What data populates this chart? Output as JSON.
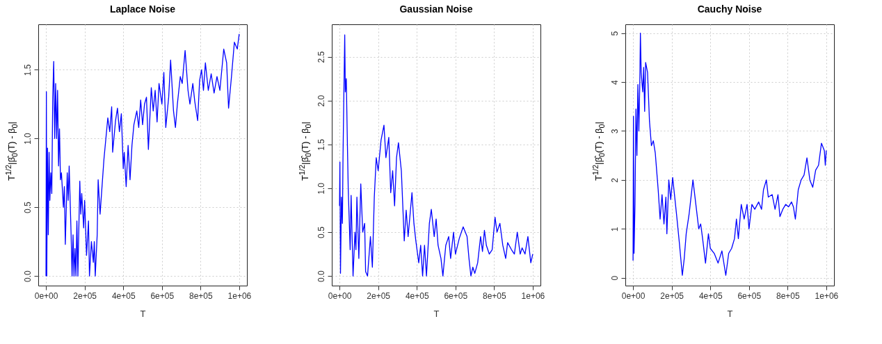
{
  "chart_data": [
    {
      "type": "line",
      "title": "Laplace Noise",
      "xlabel": "T",
      "ylabel": "T$^{1/2}$|β̂$_{0}$(T) - β$_{0}$|",
      "grid": true,
      "xlim": [
        -40000,
        1040000
      ],
      "ylim": [
        -0.07,
        1.83
      ],
      "xticks": [
        {
          "value": 0,
          "label": "0e+00"
        },
        {
          "value": 200000,
          "label": "2e+05"
        },
        {
          "value": 400000,
          "label": "4e+05"
        },
        {
          "value": 600000,
          "label": "6e+05"
        },
        {
          "value": 800000,
          "label": "8e+05"
        },
        {
          "value": 1000000,
          "label": "1e+06"
        }
      ],
      "yticks": [
        {
          "value": 0,
          "label": "0.0"
        },
        0.5,
        {
          "value": 1,
          "label": "1.0"
        },
        1.5
      ],
      "x": [
        0,
        2000,
        4000,
        8000,
        12000,
        16000,
        20000,
        25000,
        30000,
        35000,
        40000,
        45000,
        50000,
        55000,
        60000,
        65000,
        70000,
        75000,
        80000,
        90000,
        95000,
        100000,
        110000,
        115000,
        120000,
        130000,
        135000,
        140000,
        145000,
        150000,
        155000,
        160000,
        165000,
        175000,
        180000,
        185000,
        195000,
        200000,
        210000,
        220000,
        225000,
        235000,
        245000,
        250000,
        255000,
        265000,
        270000,
        280000,
        300000,
        320000,
        330000,
        340000,
        345000,
        360000,
        370000,
        380000,
        390000,
        400000,
        405000,
        415000,
        425000,
        435000,
        445000,
        455000,
        470000,
        480000,
        490000,
        500000,
        510000,
        520000,
        530000,
        545000,
        555000,
        565000,
        575000,
        585000,
        600000,
        610000,
        620000,
        635000,
        645000,
        660000,
        670000,
        680000,
        695000,
        705000,
        720000,
        735000,
        745000,
        760000,
        770000,
        785000,
        795000,
        805000,
        815000,
        825000,
        840000,
        855000,
        870000,
        885000,
        900000,
        910000,
        920000,
        935000,
        945000,
        960000,
        975000,
        990000,
        1000000
      ],
      "series": [
        {
          "color": "#0000ff",
          "values": [
            0.0,
            1.34,
            0.0,
            0.93,
            0.3,
            0.9,
            0.55,
            0.75,
            0.6,
            1.3,
            1.56,
            1.0,
            1.4,
            1.0,
            1.35,
            0.8,
            1.07,
            0.7,
            0.75,
            0.5,
            0.65,
            0.23,
            0.75,
            0.55,
            0.8,
            0.3,
            0.0,
            0.3,
            0.0,
            0.2,
            0.0,
            0.4,
            0.0,
            0.69,
            0.45,
            0.6,
            0.35,
            0.55,
            0.15,
            0.4,
            0.0,
            0.25,
            0.1,
            0.25,
            0.0,
            0.3,
            0.7,
            0.45,
            0.85,
            1.15,
            1.05,
            1.23,
            0.9,
            1.13,
            1.22,
            1.05,
            1.18,
            0.78,
            0.9,
            0.65,
            0.95,
            0.7,
            0.95,
            1.1,
            1.2,
            1.08,
            1.28,
            1.1,
            1.25,
            1.3,
            0.92,
            1.37,
            1.2,
            1.35,
            1.12,
            1.4,
            1.25,
            1.48,
            1.08,
            1.3,
            1.57,
            1.2,
            1.08,
            1.25,
            1.45,
            1.4,
            1.64,
            1.35,
            1.25,
            1.4,
            1.27,
            1.13,
            1.42,
            1.5,
            1.35,
            1.55,
            1.35,
            1.47,
            1.33,
            1.45,
            1.35,
            1.5,
            1.65,
            1.55,
            1.22,
            1.45,
            1.7,
            1.65,
            1.76
          ]
        }
      ]
    },
    {
      "type": "line",
      "title": "Gaussian Noise",
      "xlabel": "T",
      "ylabel": "T$^{1/2}$|β̂$_{0}$(T) - β$_{0}$|",
      "grid": true,
      "xlim": [
        -40000,
        1040000
      ],
      "ylim": [
        -0.11,
        2.87
      ],
      "xticks": [
        {
          "value": 0,
          "label": "0e+00"
        },
        {
          "value": 200000,
          "label": "2e+05"
        },
        {
          "value": 400000,
          "label": "4e+05"
        },
        {
          "value": 600000,
          "label": "6e+05"
        },
        {
          "value": 800000,
          "label": "8e+05"
        },
        {
          "value": 1000000,
          "label": "1e+06"
        }
      ],
      "yticks": [
        {
          "value": 0,
          "label": "0.0"
        },
        0.5,
        {
          "value": 1,
          "label": "1.0"
        },
        1.5,
        {
          "value": 2,
          "label": "2.0"
        },
        2.5
      ],
      "x": [
        0,
        2000,
        5000,
        10000,
        15000,
        18000,
        22000,
        27000,
        30000,
        35000,
        40000,
        45000,
        55000,
        60000,
        70000,
        80000,
        85000,
        90000,
        100000,
        110000,
        120000,
        130000,
        135000,
        145000,
        160000,
        170000,
        180000,
        190000,
        200000,
        215000,
        230000,
        240000,
        255000,
        265000,
        275000,
        285000,
        295000,
        305000,
        320000,
        335000,
        345000,
        355000,
        365000,
        375000,
        385000,
        395000,
        410000,
        420000,
        430000,
        440000,
        450000,
        465000,
        475000,
        490000,
        500000,
        510000,
        525000,
        535000,
        550000,
        565000,
        575000,
        590000,
        600000,
        620000,
        640000,
        660000,
        670000,
        680000,
        690000,
        700000,
        715000,
        730000,
        740000,
        750000,
        760000,
        775000,
        790000,
        805000,
        815000,
        830000,
        845000,
        860000,
        870000,
        890000,
        905000,
        920000,
        935000,
        945000,
        960000,
        975000,
        990000,
        1000000
      ],
      "series": [
        {
          "color": "#0000ff",
          "values": [
            0.8,
            1.3,
            0.03,
            0.9,
            0.6,
            1.35,
            2.0,
            2.75,
            2.1,
            2.25,
            1.6,
            1.0,
            0.3,
            0.92,
            0.0,
            0.5,
            0.3,
            0.9,
            0.2,
            1.05,
            0.5,
            0.6,
            0.05,
            0.0,
            0.45,
            0.1,
            0.9,
            1.35,
            1.2,
            1.55,
            1.72,
            1.35,
            1.58,
            0.95,
            1.2,
            0.8,
            1.35,
            1.52,
            1.2,
            0.4,
            0.75,
            0.45,
            0.7,
            0.95,
            0.6,
            0.4,
            0.15,
            0.35,
            0.0,
            0.35,
            0.0,
            0.6,
            0.76,
            0.45,
            0.65,
            0.35,
            0.2,
            0.0,
            0.35,
            0.45,
            0.2,
            0.5,
            0.25,
            0.43,
            0.56,
            0.45,
            0.2,
            0.0,
            0.1,
            0.03,
            0.15,
            0.45,
            0.28,
            0.52,
            0.35,
            0.25,
            0.3,
            0.67,
            0.5,
            0.6,
            0.35,
            0.2,
            0.38,
            0.3,
            0.25,
            0.5,
            0.25,
            0.32,
            0.25,
            0.45,
            0.15,
            0.25
          ]
        }
      ]
    },
    {
      "type": "line",
      "title": "Cauchy Noise",
      "xlabel": "T",
      "ylabel": "T$^{1/2}$|β̂$_{0}$(T) - β$_{0}$|",
      "grid": true,
      "xlim": [
        -40000,
        1040000
      ],
      "ylim": [
        -0.16,
        5.18
      ],
      "xticks": [
        {
          "value": 0,
          "label": "0e+00"
        },
        {
          "value": 200000,
          "label": "2e+05"
        },
        {
          "value": 400000,
          "label": "4e+05"
        },
        {
          "value": 600000,
          "label": "6e+05"
        },
        {
          "value": 800000,
          "label": "8e+05"
        },
        {
          "value": 1000000,
          "label": "1e+06"
        }
      ],
      "yticks": [
        0,
        1,
        2,
        3,
        4,
        5
      ],
      "x": [
        0,
        2000,
        5000,
        10000,
        15000,
        20000,
        25000,
        30000,
        35000,
        38000,
        42000,
        50000,
        55000,
        60000,
        65000,
        75000,
        85000,
        95000,
        105000,
        115000,
        130000,
        140000,
        150000,
        160000,
        170000,
        175000,
        185000,
        195000,
        205000,
        225000,
        240000,
        255000,
        265000,
        275000,
        290000,
        300000,
        310000,
        325000,
        340000,
        350000,
        360000,
        375000,
        390000,
        400000,
        420000,
        440000,
        460000,
        480000,
        495000,
        510000,
        525000,
        535000,
        545000,
        560000,
        575000,
        590000,
        600000,
        615000,
        630000,
        650000,
        665000,
        675000,
        690000,
        700000,
        720000,
        735000,
        750000,
        760000,
        775000,
        790000,
        805000,
        820000,
        830000,
        840000,
        855000,
        870000,
        885000,
        900000,
        915000,
        930000,
        945000,
        960000,
        975000,
        990000,
        995000,
        1000000
      ],
      "series": [
        {
          "color": "#0000ff",
          "values": [
            0.35,
            3.3,
            0.5,
            1.5,
            3.45,
            2.5,
            3.95,
            3.0,
            4.0,
            5.0,
            4.2,
            3.8,
            4.3,
            3.4,
            4.4,
            4.2,
            3.2,
            2.7,
            2.8,
            2.55,
            1.8,
            1.2,
            1.7,
            1.1,
            1.65,
            0.9,
            2.0,
            1.6,
            2.05,
            1.3,
            0.7,
            0.05,
            0.4,
            0.9,
            1.3,
            1.65,
            2.0,
            1.5,
            1.0,
            1.1,
            0.8,
            0.3,
            0.9,
            0.6,
            0.5,
            0.3,
            0.55,
            0.05,
            0.5,
            0.6,
            0.8,
            1.2,
            0.8,
            1.5,
            1.2,
            1.5,
            1.0,
            1.5,
            1.4,
            1.55,
            1.4,
            1.8,
            2.0,
            1.65,
            1.7,
            1.4,
            1.7,
            1.25,
            1.4,
            1.5,
            1.45,
            1.55,
            1.45,
            1.2,
            1.8,
            2.0,
            2.1,
            2.45,
            2.0,
            1.85,
            2.2,
            2.3,
            2.75,
            2.6,
            2.3,
            2.6
          ]
        }
      ]
    }
  ]
}
